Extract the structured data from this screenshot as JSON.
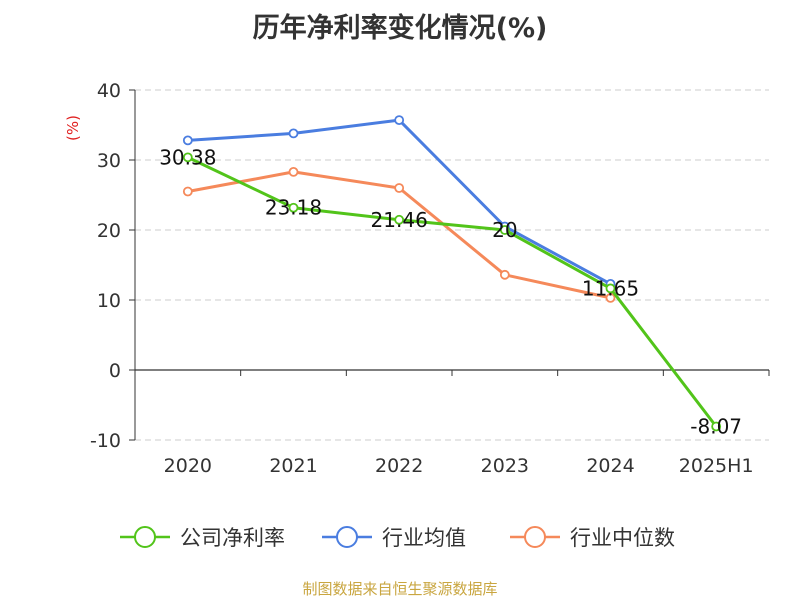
{
  "chart_data": {
    "type": "line",
    "title": "历年净利率变化情况(%)",
    "ylabel": "(%)",
    "xlabel": "",
    "categories": [
      "2020",
      "2021",
      "2022",
      "2023",
      "2024",
      "2025H1"
    ],
    "ylim": [
      -10,
      40
    ],
    "yticks": [
      -10,
      0,
      10,
      20,
      30,
      40
    ],
    "grid": true,
    "legend_position": "bottom",
    "series": [
      {
        "name": "公司净利率",
        "color": "#52c41a",
        "values": [
          30.38,
          23.18,
          21.46,
          20,
          11.65,
          -8.07
        ],
        "labels": [
          "30.38",
          "23.18",
          "21.46",
          "20",
          "11.65",
          "-8.07"
        ]
      },
      {
        "name": "行业均值",
        "color": "#4a7de0",
        "values": [
          32.8,
          33.8,
          35.7,
          20.5,
          12.3,
          null
        ]
      },
      {
        "name": "行业中位数",
        "color": "#f5895a",
        "values": [
          25.5,
          28.3,
          26.0,
          13.6,
          10.3,
          null
        ]
      }
    ]
  },
  "footer": "制图数据来自恒生聚源数据库"
}
